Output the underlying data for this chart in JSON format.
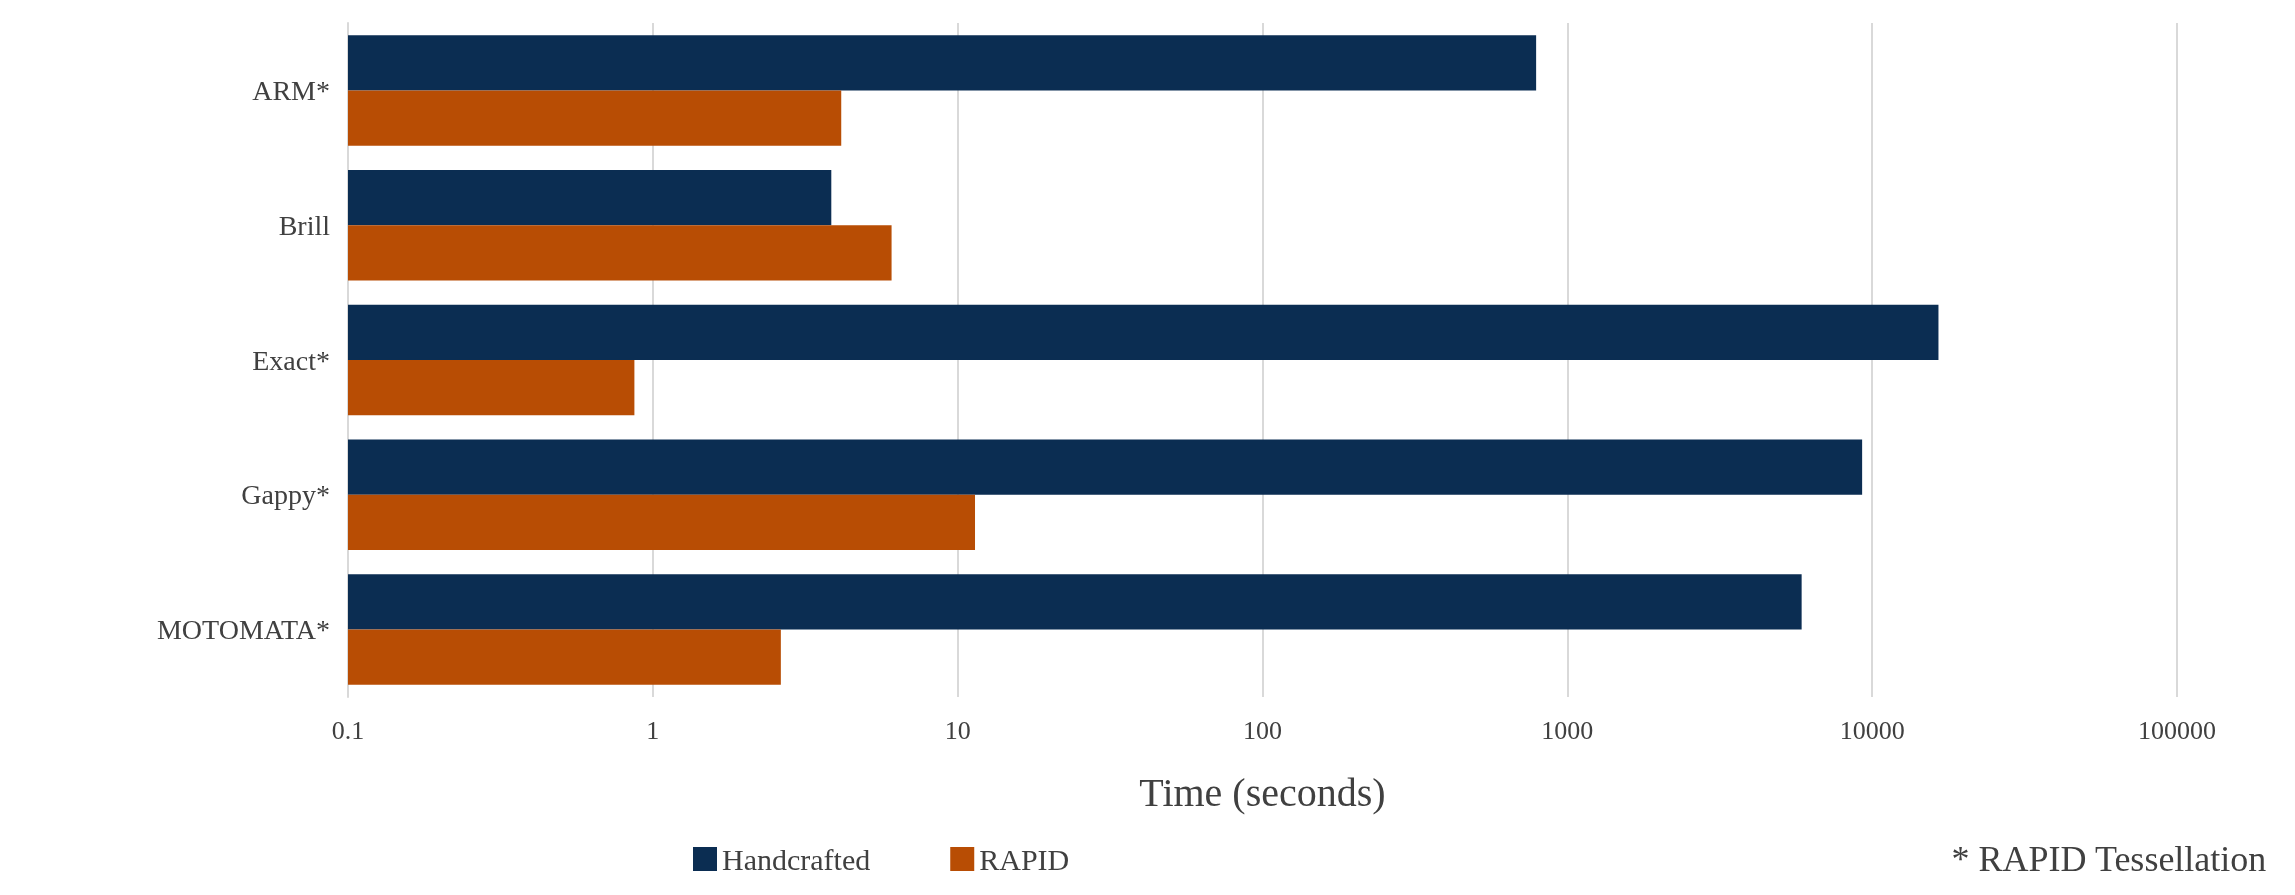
{
  "chart_data": {
    "type": "bar",
    "orientation": "horizontal",
    "categories": [
      "ARM*",
      "Brill",
      "Exact*",
      "Gappy*",
      "MOTOMATA*"
    ],
    "series": [
      {
        "name": "Handcrafted",
        "color": "#0b2d52",
        "values": [
          790,
          3.85,
          16500,
          9270,
          5870
        ]
      },
      {
        "name": "RAPID",
        "color": "#b84d04",
        "values": [
          4.15,
          6.07,
          0.87,
          11.4,
          2.63
        ]
      }
    ],
    "log": "x",
    "xlim": [
      0.1,
      100000
    ],
    "xticks": [
      0.1,
      1,
      10,
      100,
      1000,
      10000,
      100000
    ],
    "xlabel": "Time (seconds)",
    "grid": "x",
    "legend": "bottom",
    "annotations": [
      "* RAPID Tessellation"
    ]
  }
}
